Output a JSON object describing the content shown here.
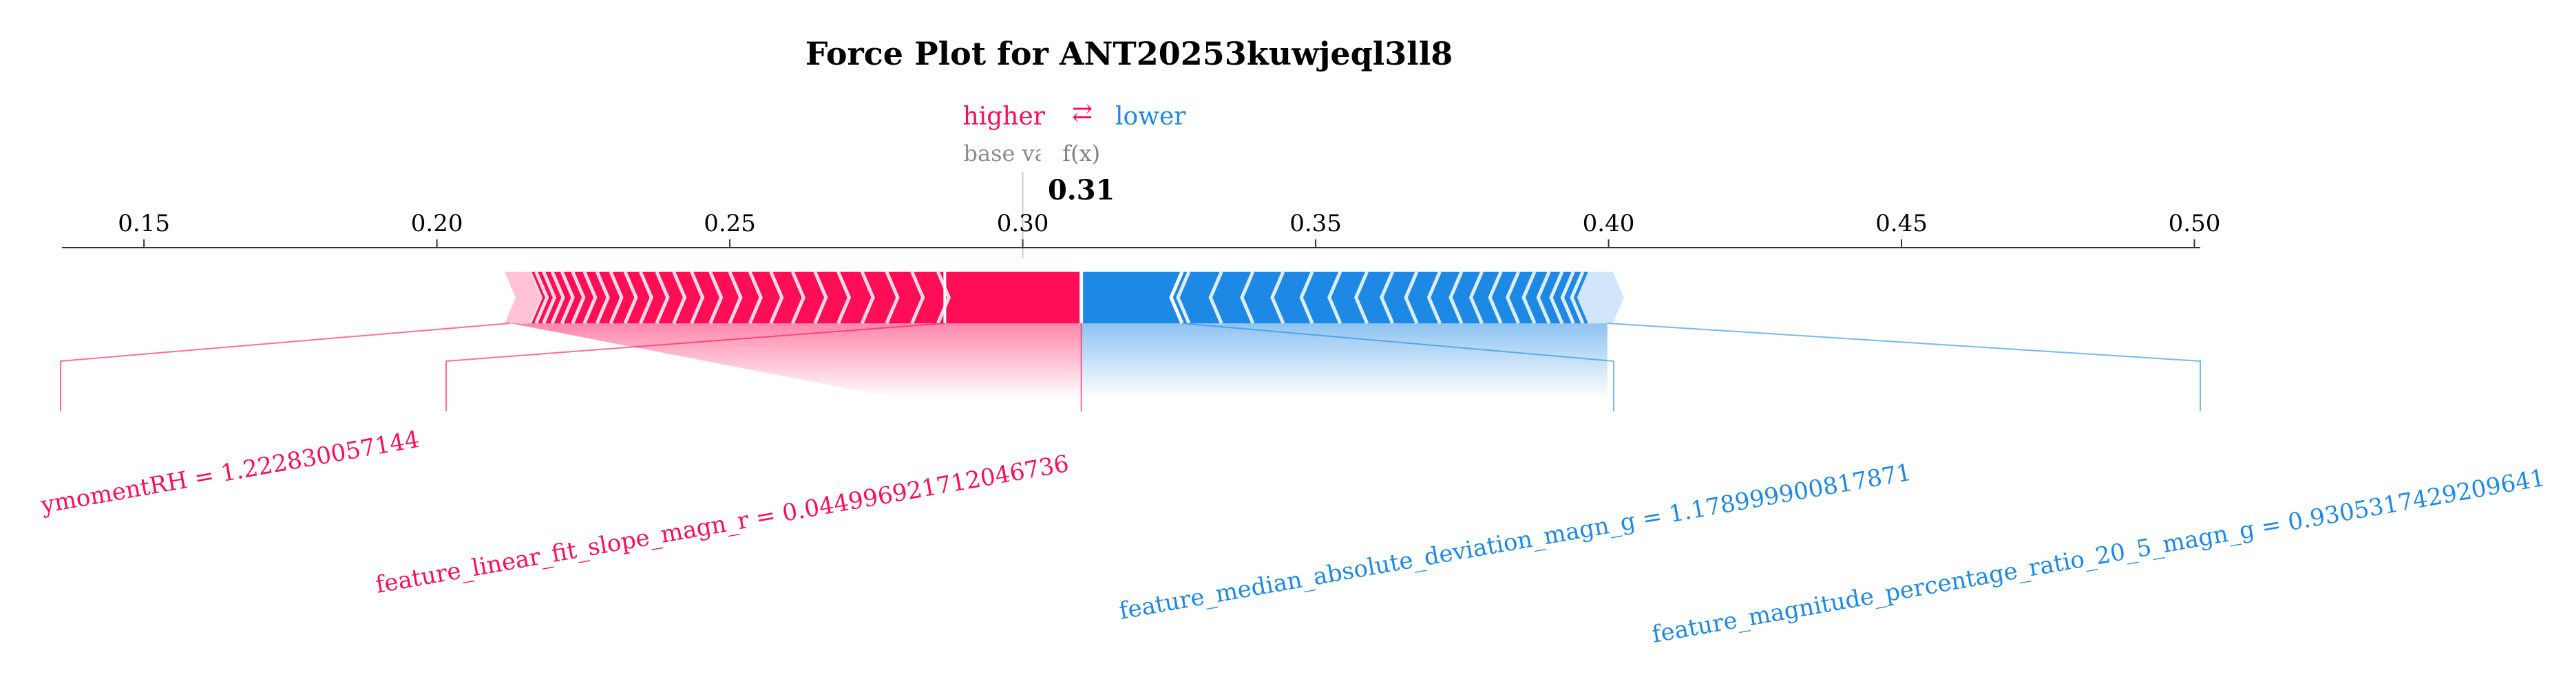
{
  "chart_data": {
    "type": "force_plot",
    "title": "Force Plot for ANT20253kuwjeql3ll8",
    "legend": {
      "higher": "higher",
      "arrow": "⇄",
      "lower": "lower"
    },
    "base_value_label": "base value",
    "fx_label": "f(x)",
    "output_value": 0.31,
    "output_label": "0.31",
    "base_value": 0.3,
    "xlim": [
      0.136,
      0.501
    ],
    "ticks": [
      {
        "value": 0.15,
        "label": "0.15"
      },
      {
        "value": 0.2,
        "label": "0.20"
      },
      {
        "value": 0.25,
        "label": "0.25"
      },
      {
        "value": 0.3,
        "label": "0.30"
      },
      {
        "value": 0.35,
        "label": "0.35"
      },
      {
        "value": 0.4,
        "label": "0.40"
      },
      {
        "value": 0.45,
        "label": "0.45"
      },
      {
        "value": 0.5,
        "label": "0.50"
      }
    ],
    "positive_extent": [
      0.2125,
      0.31
    ],
    "negative_extent": [
      0.31,
      0.3998
    ],
    "positive_features": [
      {
        "label": "feature_linear_fit_slope_magn_r = 0.044996921712046736",
        "start": 0.2867,
        "end": 0.31
      },
      {
        "label": "ymomentRH = 1.222830057144",
        "start": 0.2125,
        "end": 0.2867
      }
    ],
    "negative_features": [
      {
        "label": "feature_median_absolute_deviation_magn_g = 1.178999900817871",
        "start": 0.31,
        "end": 0.3272
      },
      {
        "label": "feature_magnitude_percentage_ratio_20_5_magn_g = 0.9305317429209641",
        "start": 0.3272,
        "end": 0.3998
      }
    ],
    "colors": {
      "positive": "#ff0d57",
      "negative": "#1e88e5",
      "axis": "#333333",
      "base_label": "#808080"
    }
  }
}
